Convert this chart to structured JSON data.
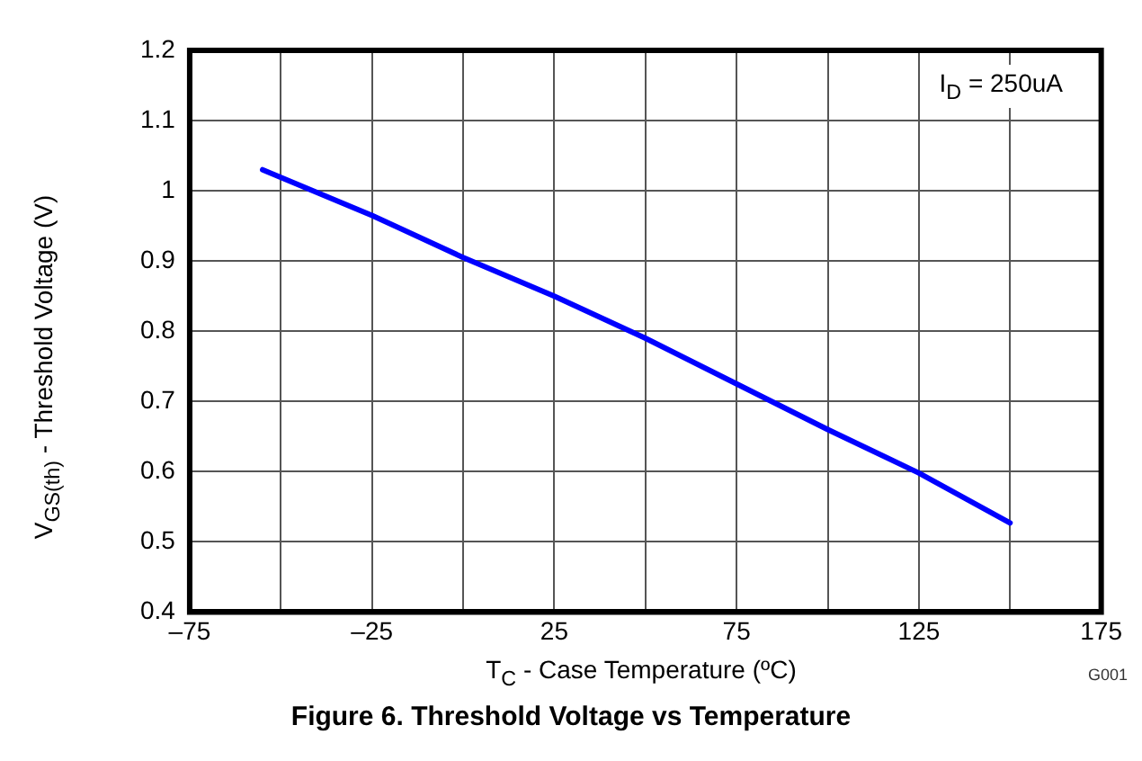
{
  "chart_data": {
    "type": "line",
    "title": "Figure 6. Threshold Voltage vs Temperature",
    "xlabel": "T$_{C}$ - Case Temperature (ºC)",
    "ylabel": "V$_{GS(th)}$ - Threshold Voltage (V)",
    "annotations": [
      "I$_{D}$ = 250uA",
      "G001"
    ],
    "x": [
      -55,
      -25,
      0,
      25,
      50,
      75,
      100,
      125,
      150
    ],
    "series": [
      {
        "color": "#0000ff",
        "values": [
          1.03,
          0.965,
          0.905,
          0.85,
          0.79,
          0.725,
          0.66,
          0.598,
          0.527
        ]
      }
    ],
    "xlim": [
      -75,
      175
    ],
    "xticks": [
      {
        "value": -75,
        "label": "–75"
      },
      {
        "value": -50,
        "label": null
      },
      {
        "value": -25,
        "label": "–25"
      },
      {
        "value": 0,
        "label": null
      },
      {
        "value": 25,
        "label": "25"
      },
      {
        "value": 50,
        "label": null
      },
      {
        "value": 75,
        "label": "75"
      },
      {
        "value": 100,
        "label": null
      },
      {
        "value": 125,
        "label": "125"
      },
      {
        "value": 150,
        "label": null
      },
      {
        "value": 175,
        "label": "175"
      }
    ],
    "ylim": [
      0.4,
      1.2
    ],
    "yticks": [
      0.4,
      0.5,
      0.6,
      0.7,
      0.8,
      0.9,
      1,
      1.1,
      1.2
    ],
    "grid": true,
    "marker": "none",
    "line_style": "solid"
  }
}
